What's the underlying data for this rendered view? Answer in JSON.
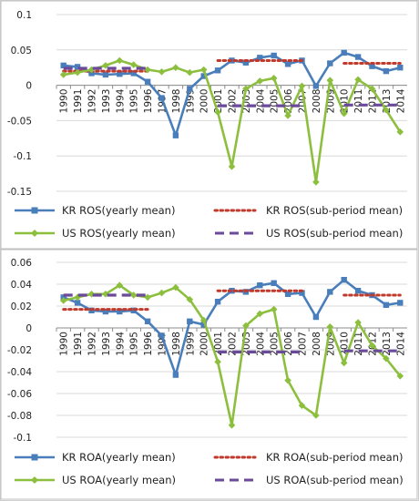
{
  "chart_data": [
    {
      "type": "line",
      "title": "",
      "xlabel": "",
      "ylabel": "",
      "ylim": [
        -0.15,
        0.1
      ],
      "yticks": [
        -0.15,
        -0.1,
        -0.05,
        0,
        0.05,
        0.1
      ],
      "ytick_labels": [
        "-0.15",
        "-0.1",
        "-0.05",
        "0",
        "0.05",
        "0.1"
      ],
      "x": [
        "1990",
        "1991",
        "1992",
        "1993",
        "1994",
        "1995",
        "1996",
        "1997",
        "1998",
        "1999",
        "2000",
        "2001",
        "2002",
        "2003",
        "2004",
        "2005",
        "2006",
        "2007",
        "2008",
        "2009",
        "2010",
        "2011",
        "2012",
        "2013",
        "2014"
      ],
      "grid": "horizontal",
      "legend_position": "bottom",
      "series": [
        {
          "name": "KR ROS(yearly mean)",
          "kind": "yearly",
          "color": "#4a7ebb",
          "values": [
            0.028,
            0.026,
            0.017,
            0.015,
            0.016,
            0.017,
            0.005,
            -0.018,
            -0.071,
            -0.005,
            0.013,
            0.021,
            0.035,
            0.032,
            0.039,
            0.042,
            0.03,
            0.035,
            -0.001,
            0.031,
            0.046,
            0.04,
            0.027,
            0.02,
            0.025
          ]
        },
        {
          "name": "KR ROS(sub-period mean)",
          "kind": "sub-period",
          "color": "#c0392b",
          "segments": [
            {
              "from": "1990",
              "to": "1996",
              "value": 0.02
            },
            {
              "from": "2001",
              "to": "2007",
              "value": 0.035
            },
            {
              "from": "2010",
              "to": "2014",
              "value": 0.031
            }
          ]
        },
        {
          "name": "US ROS(yearly mean)",
          "kind": "yearly",
          "color": "#8dbf3f",
          "values": [
            0.015,
            0.018,
            0.022,
            0.028,
            0.035,
            0.029,
            0.022,
            0.019,
            0.025,
            0.018,
            0.022,
            -0.038,
            -0.115,
            -0.005,
            0.006,
            0.01,
            -0.043,
            -0.001,
            -0.137,
            0.007,
            -0.04,
            0.008,
            -0.005,
            -0.035,
            -0.066
          ]
        },
        {
          "name": "US ROS(sub-period mean)",
          "kind": "sub-period",
          "color": "#6b4a9a",
          "segments": [
            {
              "from": "1990",
              "to": "1996",
              "value": 0.024
            },
            {
              "from": "2001",
              "to": "2007",
              "value": -0.029
            },
            {
              "from": "2010",
              "to": "2014",
              "value": -0.028
            }
          ]
        }
      ]
    },
    {
      "type": "line",
      "title": "",
      "xlabel": "",
      "ylabel": "",
      "ylim": [
        -0.1,
        0.06
      ],
      "yticks": [
        -0.1,
        -0.08,
        -0.06,
        -0.04,
        -0.02,
        0,
        0.02,
        0.04,
        0.06
      ],
      "ytick_labels": [
        "-0.1",
        "-0.08",
        "-0.06",
        "-0.04",
        "-0.02",
        "0",
        "0.02",
        "0.04",
        "0.06"
      ],
      "x": [
        "1990",
        "1991",
        "1992",
        "1993",
        "1994",
        "1995",
        "1996",
        "1997",
        "1998",
        "1999",
        "2000",
        "2001",
        "2002",
        "2003",
        "2004",
        "2005",
        "2006",
        "2007",
        "2008",
        "2009",
        "2010",
        "2011",
        "2012",
        "2013",
        "2014"
      ],
      "grid": "horizontal",
      "legend_position": "bottom",
      "series": [
        {
          "name": "KR ROA(yearly mean)",
          "kind": "yearly",
          "color": "#4a7ebb",
          "values": [
            0.028,
            0.023,
            0.016,
            0.015,
            0.015,
            0.016,
            0.006,
            -0.007,
            -0.043,
            0.006,
            0.003,
            0.024,
            0.034,
            0.033,
            0.039,
            0.041,
            0.031,
            0.032,
            0.01,
            0.033,
            0.044,
            0.034,
            0.03,
            0.021,
            0.023
          ]
        },
        {
          "name": "KR ROA(sub-period mean)",
          "kind": "sub-period",
          "color": "#c0392b",
          "segments": [
            {
              "from": "1990",
              "to": "1996",
              "value": 0.017
            },
            {
              "from": "2001",
              "to": "2007",
              "value": 0.034
            },
            {
              "from": "2010",
              "to": "2014",
              "value": 0.03
            }
          ]
        },
        {
          "name": "US ROA(yearly mean)",
          "kind": "yearly",
          "color": "#8dbf3f",
          "values": [
            0.025,
            0.028,
            0.031,
            0.031,
            0.039,
            0.03,
            0.028,
            0.032,
            0.037,
            0.026,
            0.007,
            -0.031,
            -0.089,
            0.002,
            0.013,
            0.017,
            -0.048,
            -0.071,
            -0.08,
            0.001,
            -0.032,
            0.005,
            -0.016,
            -0.028,
            -0.044
          ]
        },
        {
          "name": "US ROA(sub-period mean)",
          "kind": "sub-period",
          "color": "#6b4a9a",
          "segments": [
            {
              "from": "1990",
              "to": "1996",
              "value": 0.03
            },
            {
              "from": "2001",
              "to": "2007",
              "value": -0.022
            },
            {
              "from": "2010",
              "to": "2014",
              "value": -0.021
            }
          ]
        }
      ]
    }
  ]
}
